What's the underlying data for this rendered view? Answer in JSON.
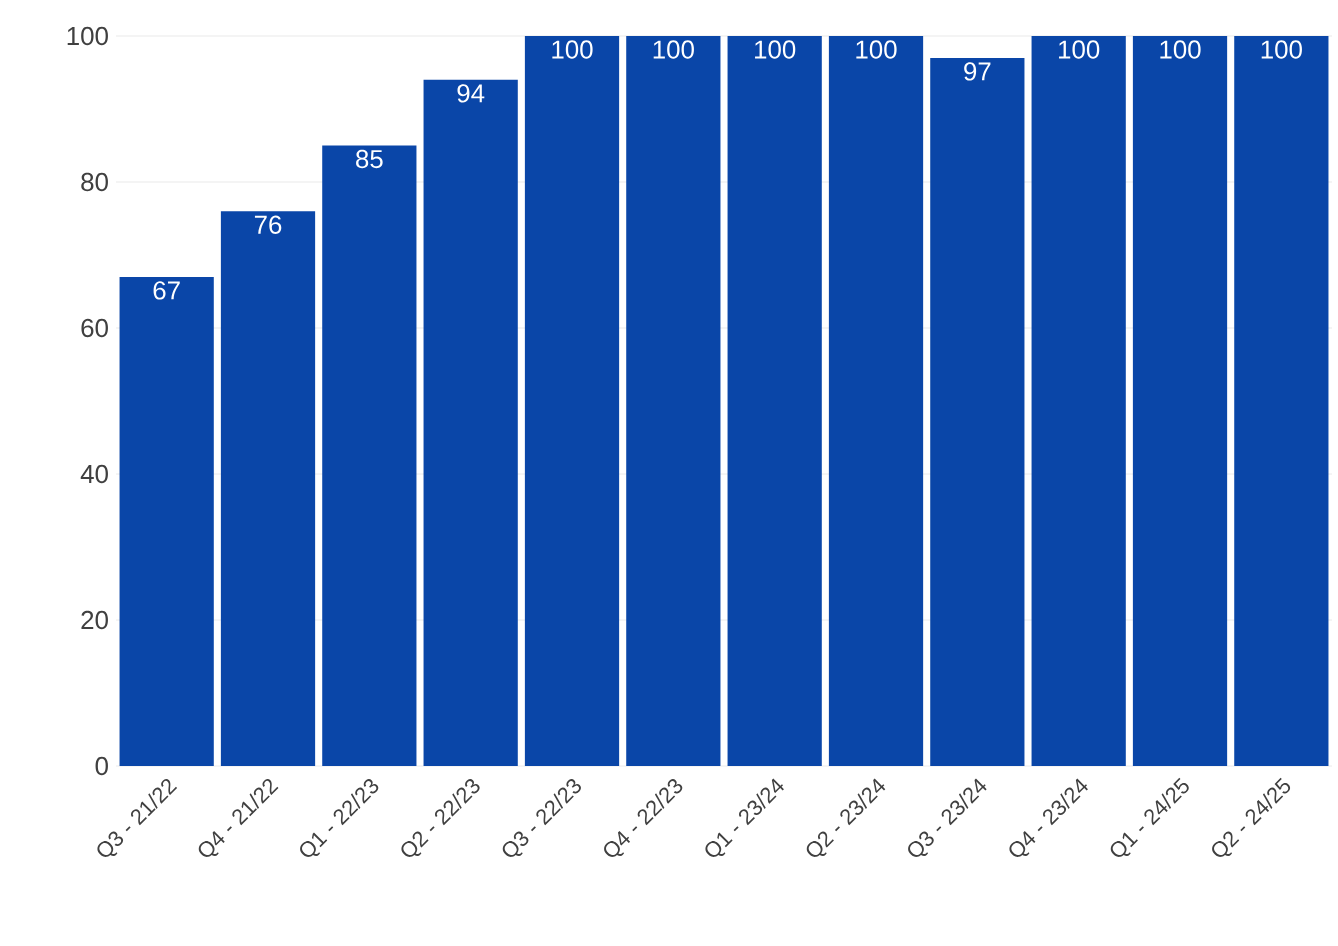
{
  "chart_data": {
    "type": "bar",
    "categories": [
      "Q3 - 21/22",
      "Q4 - 21/22",
      "Q1 - 22/23",
      "Q2 - 22/23",
      "Q3 - 22/23",
      "Q4 - 22/23",
      "Q1 - 23/24",
      "Q2 - 23/24",
      "Q3 - 23/24",
      "Q4 - 23/24",
      "Q1 - 24/25",
      "Q2 - 24/25"
    ],
    "values": [
      67,
      76,
      85,
      94,
      100,
      100,
      100,
      100,
      97,
      100,
      100,
      100
    ],
    "color": "#0a46a8",
    "ylim": [
      0,
      100
    ],
    "yticks": [
      0,
      20,
      40,
      60,
      80,
      100
    ],
    "grid": "y",
    "data_labels": true
  }
}
